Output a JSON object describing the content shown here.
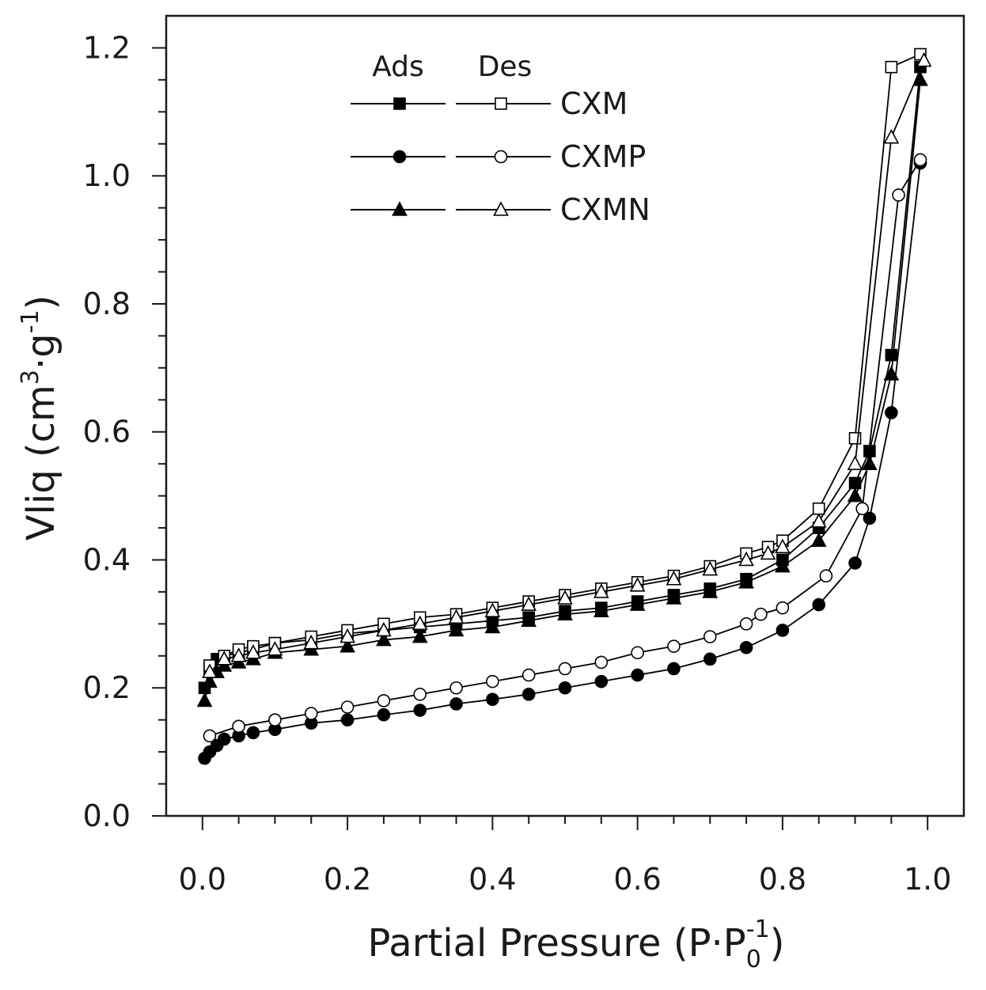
{
  "chart_data": {
    "type": "line",
    "title": "",
    "xlabel": "Partial Pressure (P·P",
    "xlabel_sub": "0",
    "xlabel_sup": "-1",
    "xlabel_close": ")",
    "ylabel": "Vliq (cm",
    "ylabel_sup1": "3",
    "ylabel_mid": "·g",
    "ylabel_sup2": "-1",
    "ylabel_close": ")",
    "xlim": [
      -0.05,
      1.05
    ],
    "ylim": [
      0.0,
      1.25
    ],
    "xticks": [
      0.0,
      0.2,
      0.4,
      0.6,
      0.8,
      1.0
    ],
    "xtick_labels": [
      "0.0",
      "0.2",
      "0.4",
      "0.6",
      "0.8",
      "1.0"
    ],
    "yticks": [
      0.0,
      0.2,
      0.4,
      0.6,
      0.8,
      1.0,
      1.2
    ],
    "ytick_labels": [
      "0.0",
      "0.2",
      "0.4",
      "0.6",
      "0.8",
      "1.0",
      "1.2"
    ],
    "legend": {
      "placement": "top-left",
      "ads_header": "Ads",
      "des_header": "Des",
      "entries": [
        "CXM",
        "CXMP",
        "CXMN"
      ]
    },
    "series": [
      {
        "name": "CXM",
        "branch": "Ads",
        "marker": "square",
        "filled": true,
        "x": [
          0.003,
          0.01,
          0.02,
          0.03,
          0.05,
          0.07,
          0.1,
          0.15,
          0.2,
          0.25,
          0.3,
          0.35,
          0.4,
          0.45,
          0.5,
          0.55,
          0.6,
          0.65,
          0.7,
          0.75,
          0.8,
          0.85,
          0.9,
          0.92,
          0.95,
          0.99
        ],
        "y": [
          0.2,
          0.23,
          0.245,
          0.25,
          0.255,
          0.26,
          0.27,
          0.275,
          0.285,
          0.29,
          0.295,
          0.3,
          0.305,
          0.31,
          0.32,
          0.325,
          0.335,
          0.345,
          0.355,
          0.37,
          0.4,
          0.45,
          0.52,
          0.57,
          0.72,
          1.17
        ]
      },
      {
        "name": "CXM",
        "branch": "Des",
        "marker": "square",
        "filled": false,
        "x": [
          0.99,
          0.95,
          0.9,
          0.85,
          0.8,
          0.78,
          0.75,
          0.7,
          0.65,
          0.6,
          0.55,
          0.5,
          0.45,
          0.4,
          0.35,
          0.3,
          0.25,
          0.2,
          0.15,
          0.1,
          0.07,
          0.05,
          0.03,
          0.01
        ],
        "y": [
          1.19,
          1.17,
          0.59,
          0.48,
          0.43,
          0.42,
          0.41,
          0.39,
          0.375,
          0.365,
          0.355,
          0.345,
          0.335,
          0.325,
          0.315,
          0.31,
          0.3,
          0.29,
          0.28,
          0.27,
          0.265,
          0.26,
          0.25,
          0.235
        ]
      },
      {
        "name": "CXMP",
        "branch": "Ads",
        "marker": "circle",
        "filled": true,
        "x": [
          0.003,
          0.01,
          0.02,
          0.03,
          0.05,
          0.07,
          0.1,
          0.15,
          0.2,
          0.25,
          0.3,
          0.35,
          0.4,
          0.45,
          0.5,
          0.55,
          0.6,
          0.65,
          0.7,
          0.75,
          0.8,
          0.85,
          0.9,
          0.92,
          0.95,
          0.99
        ],
        "y": [
          0.09,
          0.1,
          0.11,
          0.12,
          0.125,
          0.13,
          0.135,
          0.145,
          0.15,
          0.158,
          0.165,
          0.175,
          0.182,
          0.19,
          0.2,
          0.21,
          0.22,
          0.23,
          0.245,
          0.263,
          0.29,
          0.33,
          0.395,
          0.465,
          0.63,
          1.02
        ]
      },
      {
        "name": "CXMP",
        "branch": "Des",
        "marker": "circle",
        "filled": false,
        "x": [
          0.99,
          0.96,
          0.91,
          0.86,
          0.8,
          0.77,
          0.75,
          0.7,
          0.65,
          0.6,
          0.55,
          0.5,
          0.45,
          0.4,
          0.35,
          0.3,
          0.25,
          0.2,
          0.15,
          0.1,
          0.05,
          0.01
        ],
        "y": [
          1.025,
          0.97,
          0.48,
          0.375,
          0.325,
          0.315,
          0.3,
          0.28,
          0.265,
          0.255,
          0.24,
          0.23,
          0.22,
          0.21,
          0.2,
          0.19,
          0.18,
          0.17,
          0.16,
          0.15,
          0.14,
          0.125
        ]
      },
      {
        "name": "CXMN",
        "branch": "Ads",
        "marker": "triangle",
        "filled": true,
        "x": [
          0.003,
          0.01,
          0.02,
          0.03,
          0.05,
          0.07,
          0.1,
          0.15,
          0.2,
          0.25,
          0.3,
          0.35,
          0.4,
          0.45,
          0.5,
          0.55,
          0.6,
          0.65,
          0.7,
          0.75,
          0.8,
          0.85,
          0.9,
          0.92,
          0.95,
          0.99
        ],
        "y": [
          0.18,
          0.21,
          0.225,
          0.235,
          0.24,
          0.245,
          0.255,
          0.26,
          0.265,
          0.275,
          0.28,
          0.29,
          0.295,
          0.305,
          0.315,
          0.32,
          0.33,
          0.34,
          0.35,
          0.365,
          0.39,
          0.43,
          0.5,
          0.55,
          0.69,
          1.15
        ]
      },
      {
        "name": "CXMN",
        "branch": "Des",
        "marker": "triangle",
        "filled": false,
        "x": [
          0.995,
          0.95,
          0.9,
          0.85,
          0.8,
          0.78,
          0.75,
          0.7,
          0.65,
          0.6,
          0.55,
          0.5,
          0.45,
          0.4,
          0.35,
          0.3,
          0.25,
          0.2,
          0.15,
          0.1,
          0.07,
          0.05,
          0.03,
          0.01
        ],
        "y": [
          1.18,
          1.06,
          0.55,
          0.46,
          0.42,
          0.41,
          0.4,
          0.385,
          0.37,
          0.36,
          0.35,
          0.34,
          0.33,
          0.32,
          0.31,
          0.3,
          0.29,
          0.28,
          0.27,
          0.26,
          0.255,
          0.25,
          0.245,
          0.225
        ]
      }
    ]
  }
}
